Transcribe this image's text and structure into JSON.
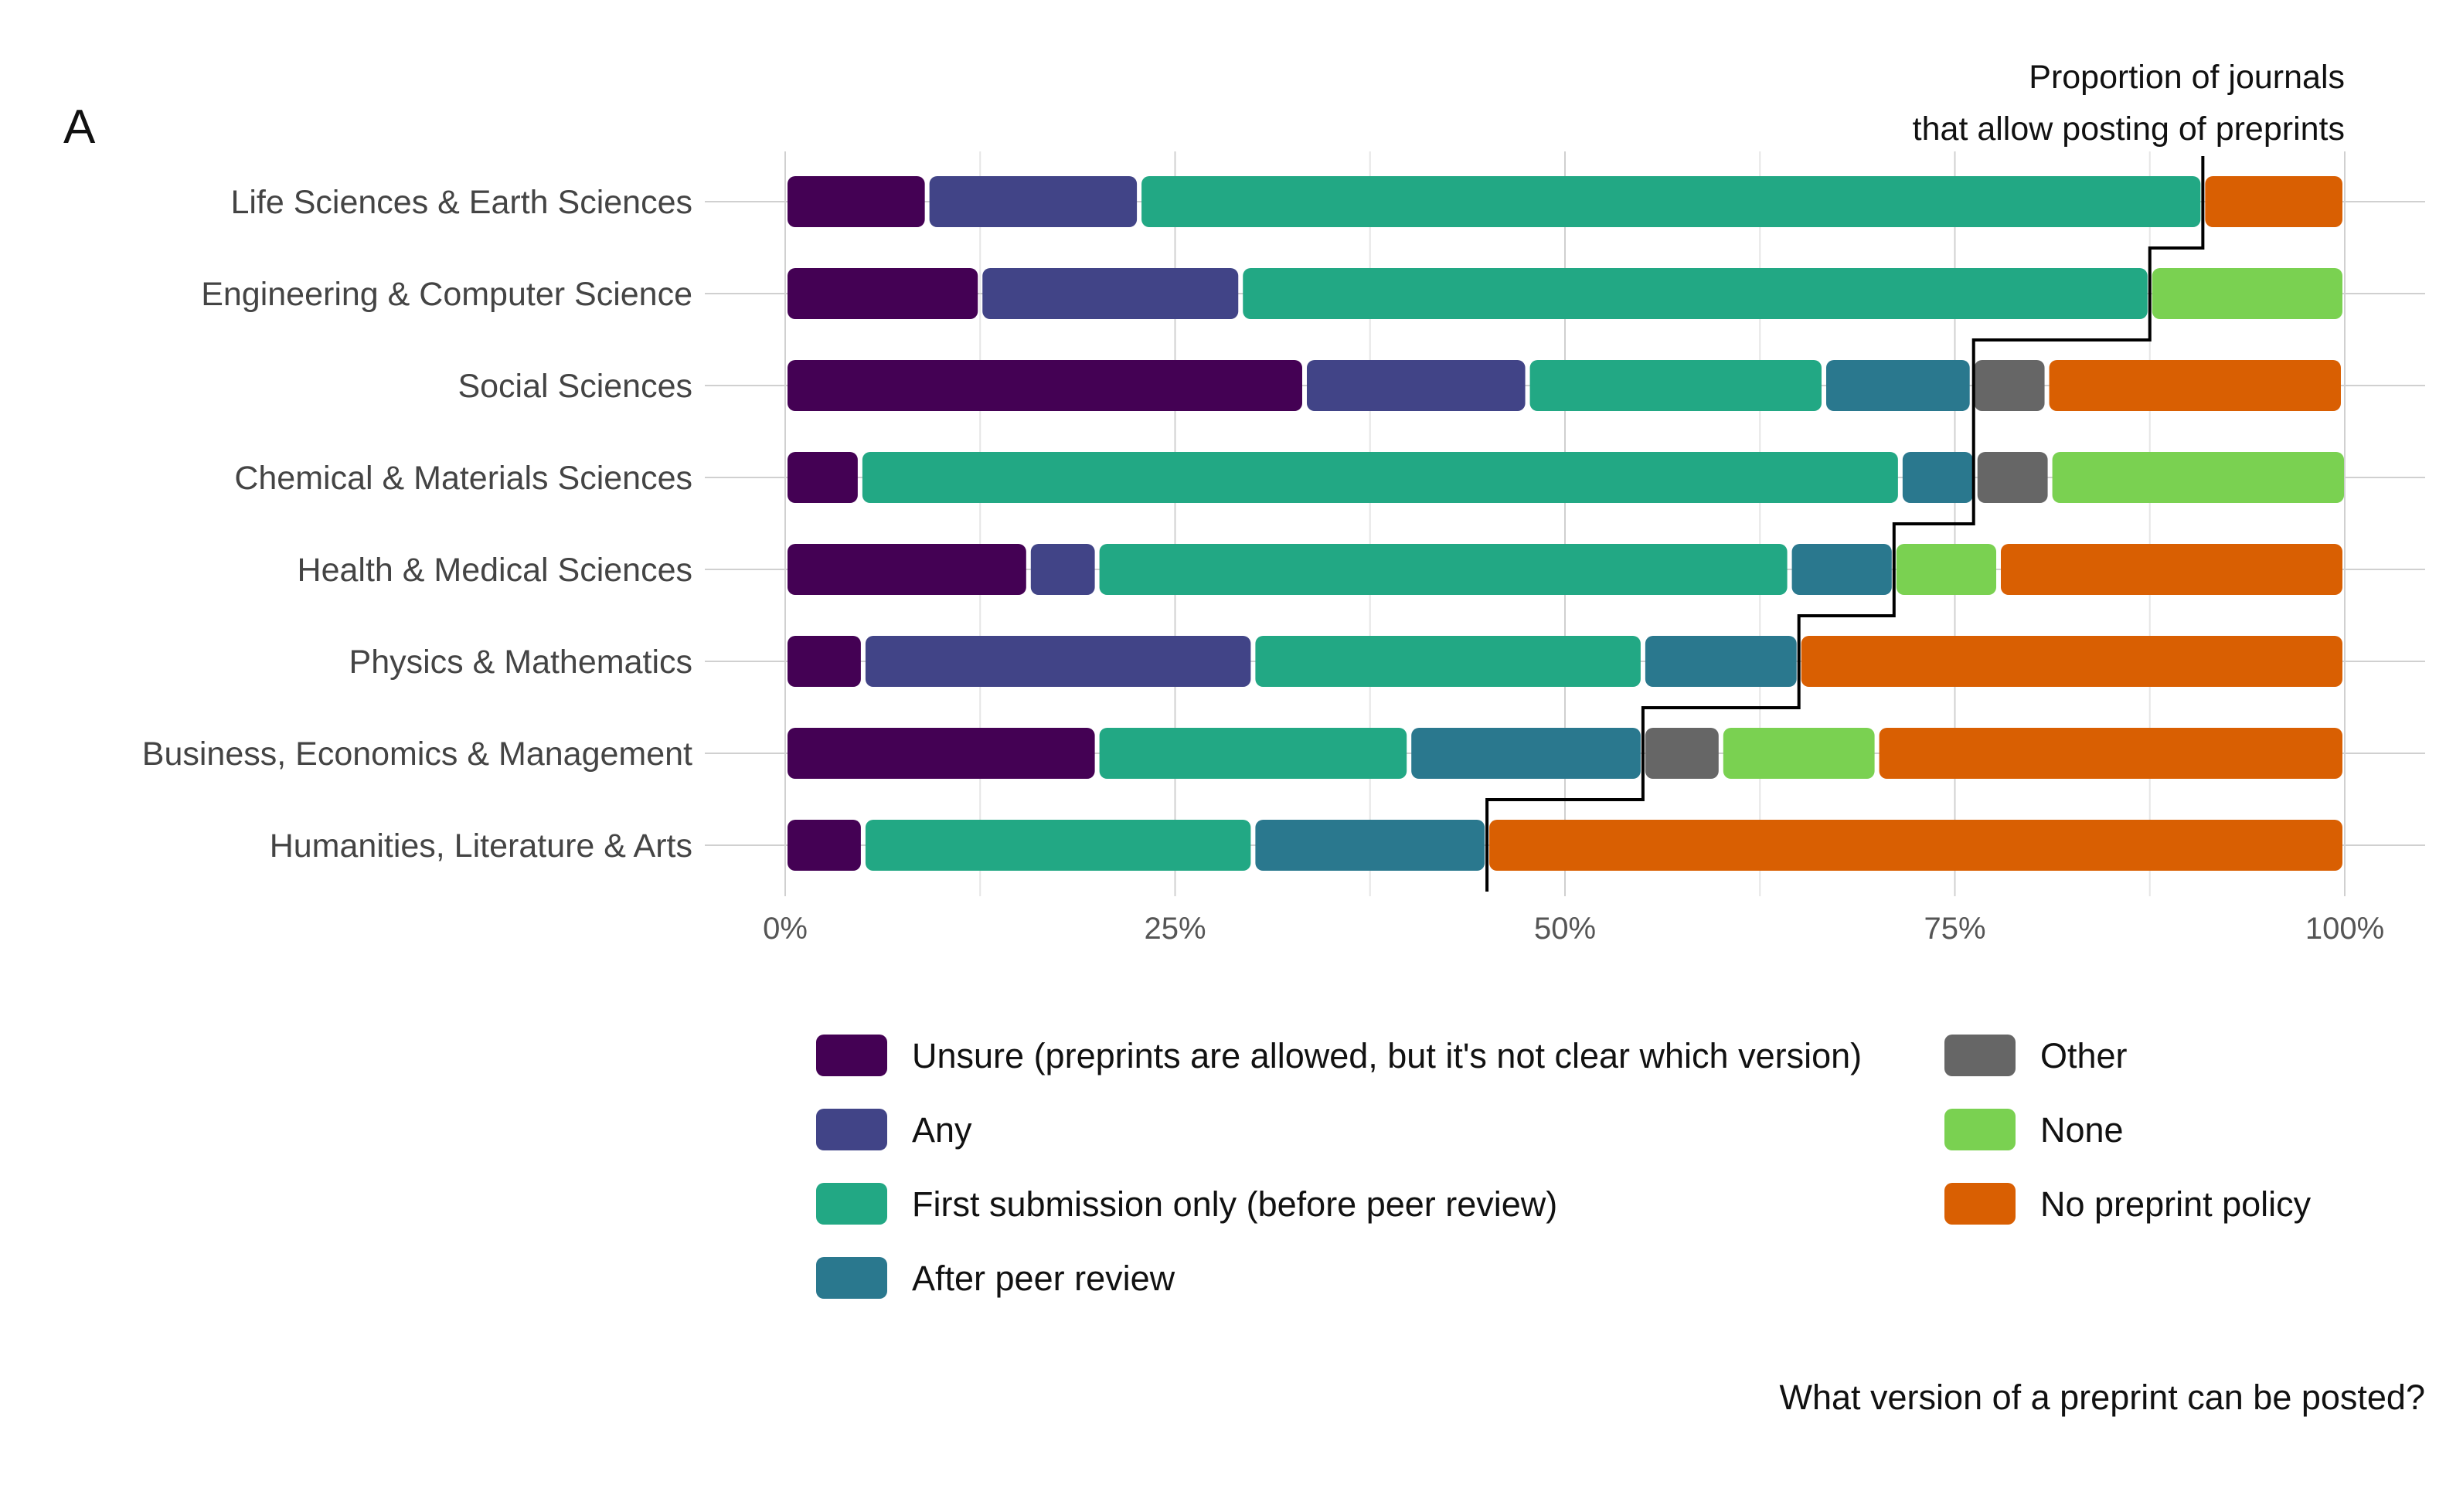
{
  "panel_label": "A",
  "annotation": {
    "line1": "Proportion of journals",
    "line2": "that allow posting of preprints"
  },
  "caption": "What version of a preprint can be posted?",
  "chart_data": {
    "type": "bar",
    "orientation": "horizontal",
    "stacked": "percent",
    "title": "",
    "xlabel": "",
    "ylabel": "",
    "xlim": [
      0,
      100
    ],
    "x_ticks": [
      "0%",
      "25%",
      "50%",
      "75%",
      "100%"
    ],
    "grid": true,
    "legend_position": "bottom",
    "categories": [
      "Life Sciences & Earth Sciences",
      "Engineering & Computer Science",
      "Social Sciences",
      "Chemical & Materials Sciences",
      "Health & Medical Sciences",
      "Physics & Mathematics",
      "Business, Economics & Management",
      "Humanities, Literature & Arts"
    ],
    "series": [
      {
        "name": "Unsure (preprints are allowed, but it's not clear which version)",
        "color": "#440154",
        "values": [
          9.1,
          12.5,
          33.3,
          4.8,
          15.6,
          5.0,
          20.0,
          5.0
        ]
      },
      {
        "name": "Any",
        "color": "#414487",
        "values": [
          13.6,
          16.7,
          14.3,
          0,
          4.4,
          25.0,
          0,
          0
        ]
      },
      {
        "name": "First submission only (before peer review)",
        "color": "#22A884",
        "values": [
          68.2,
          58.3,
          19.0,
          66.7,
          44.4,
          25.0,
          20.0,
          25.0
        ]
      },
      {
        "name": "After peer review",
        "color": "#2A788E",
        "values": [
          0,
          0,
          9.5,
          4.8,
          6.7,
          10.0,
          15.0,
          15.0
        ]
      },
      {
        "name": "Other",
        "color": "#666666",
        "values": [
          0,
          0,
          4.8,
          4.8,
          0,
          0,
          5.0,
          0
        ]
      },
      {
        "name": "None",
        "color": "#7AD151",
        "values": [
          0,
          12.5,
          0,
          19.0,
          6.7,
          0,
          10.0,
          0
        ]
      },
      {
        "name": "No preprint policy",
        "color": "#D95F02",
        "values": [
          9.1,
          0,
          19.0,
          0,
          22.2,
          35.0,
          30.0,
          55.0
        ]
      }
    ],
    "proportion_allowed": [
      90.9,
      87.5,
      76.2,
      76.2,
      71.1,
      65.0,
      55.0,
      45.0
    ]
  }
}
